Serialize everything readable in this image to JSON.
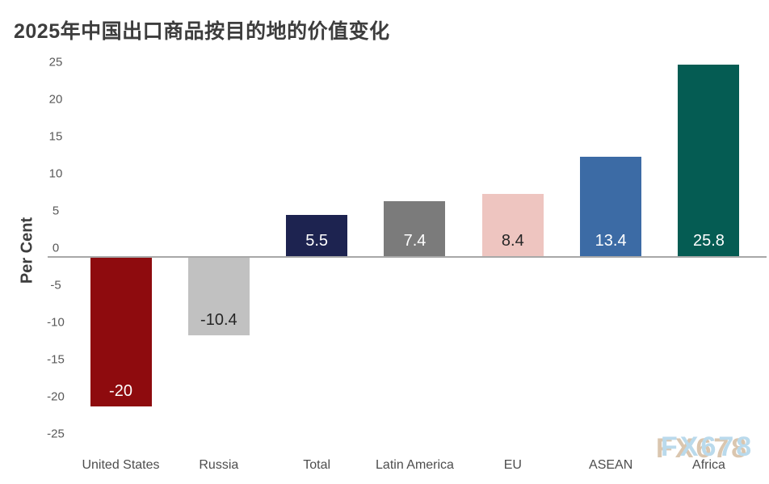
{
  "title": "2025年中国出口商品按目的地的价值变化",
  "watermark": "FX678",
  "colors": {
    "title_text": "#3d3d3d",
    "axis_line": "#a8a8a8",
    "tick_text": "#595959",
    "category_text": "#4d4d4d",
    "watermark_blue": "#b7d9ec",
    "watermark_tan": "#d9c3ab"
  },
  "chart_data": {
    "type": "bar",
    "title": "2025年中国出口商品按目的地的价值变化",
    "xlabel": "",
    "ylabel": "Per Cent",
    "ylim": [
      -25,
      25
    ],
    "ytick_interval": 5,
    "grid": false,
    "legend": false,
    "categories": [
      "United States",
      "Russia",
      "Total",
      "Latin America",
      "EU",
      "ASEAN",
      "Africa"
    ],
    "values": [
      -20,
      -10.4,
      5.5,
      7.4,
      8.4,
      13.4,
      25.8
    ],
    "value_labels": [
      "-20",
      "-10.4",
      "5.5",
      "7.4",
      "8.4",
      "13.4",
      "25.8"
    ],
    "bar_colors": [
      "#8e0b0e",
      "#c1c1c1",
      "#1d2350",
      "#7b7b7b",
      "#eec5c0",
      "#3c6ba5",
      "#055c53"
    ],
    "value_label_colors": [
      "#ffffff",
      "#262626",
      "#ffffff",
      "#ffffff",
      "#262626",
      "#ffffff",
      "#ffffff"
    ]
  }
}
